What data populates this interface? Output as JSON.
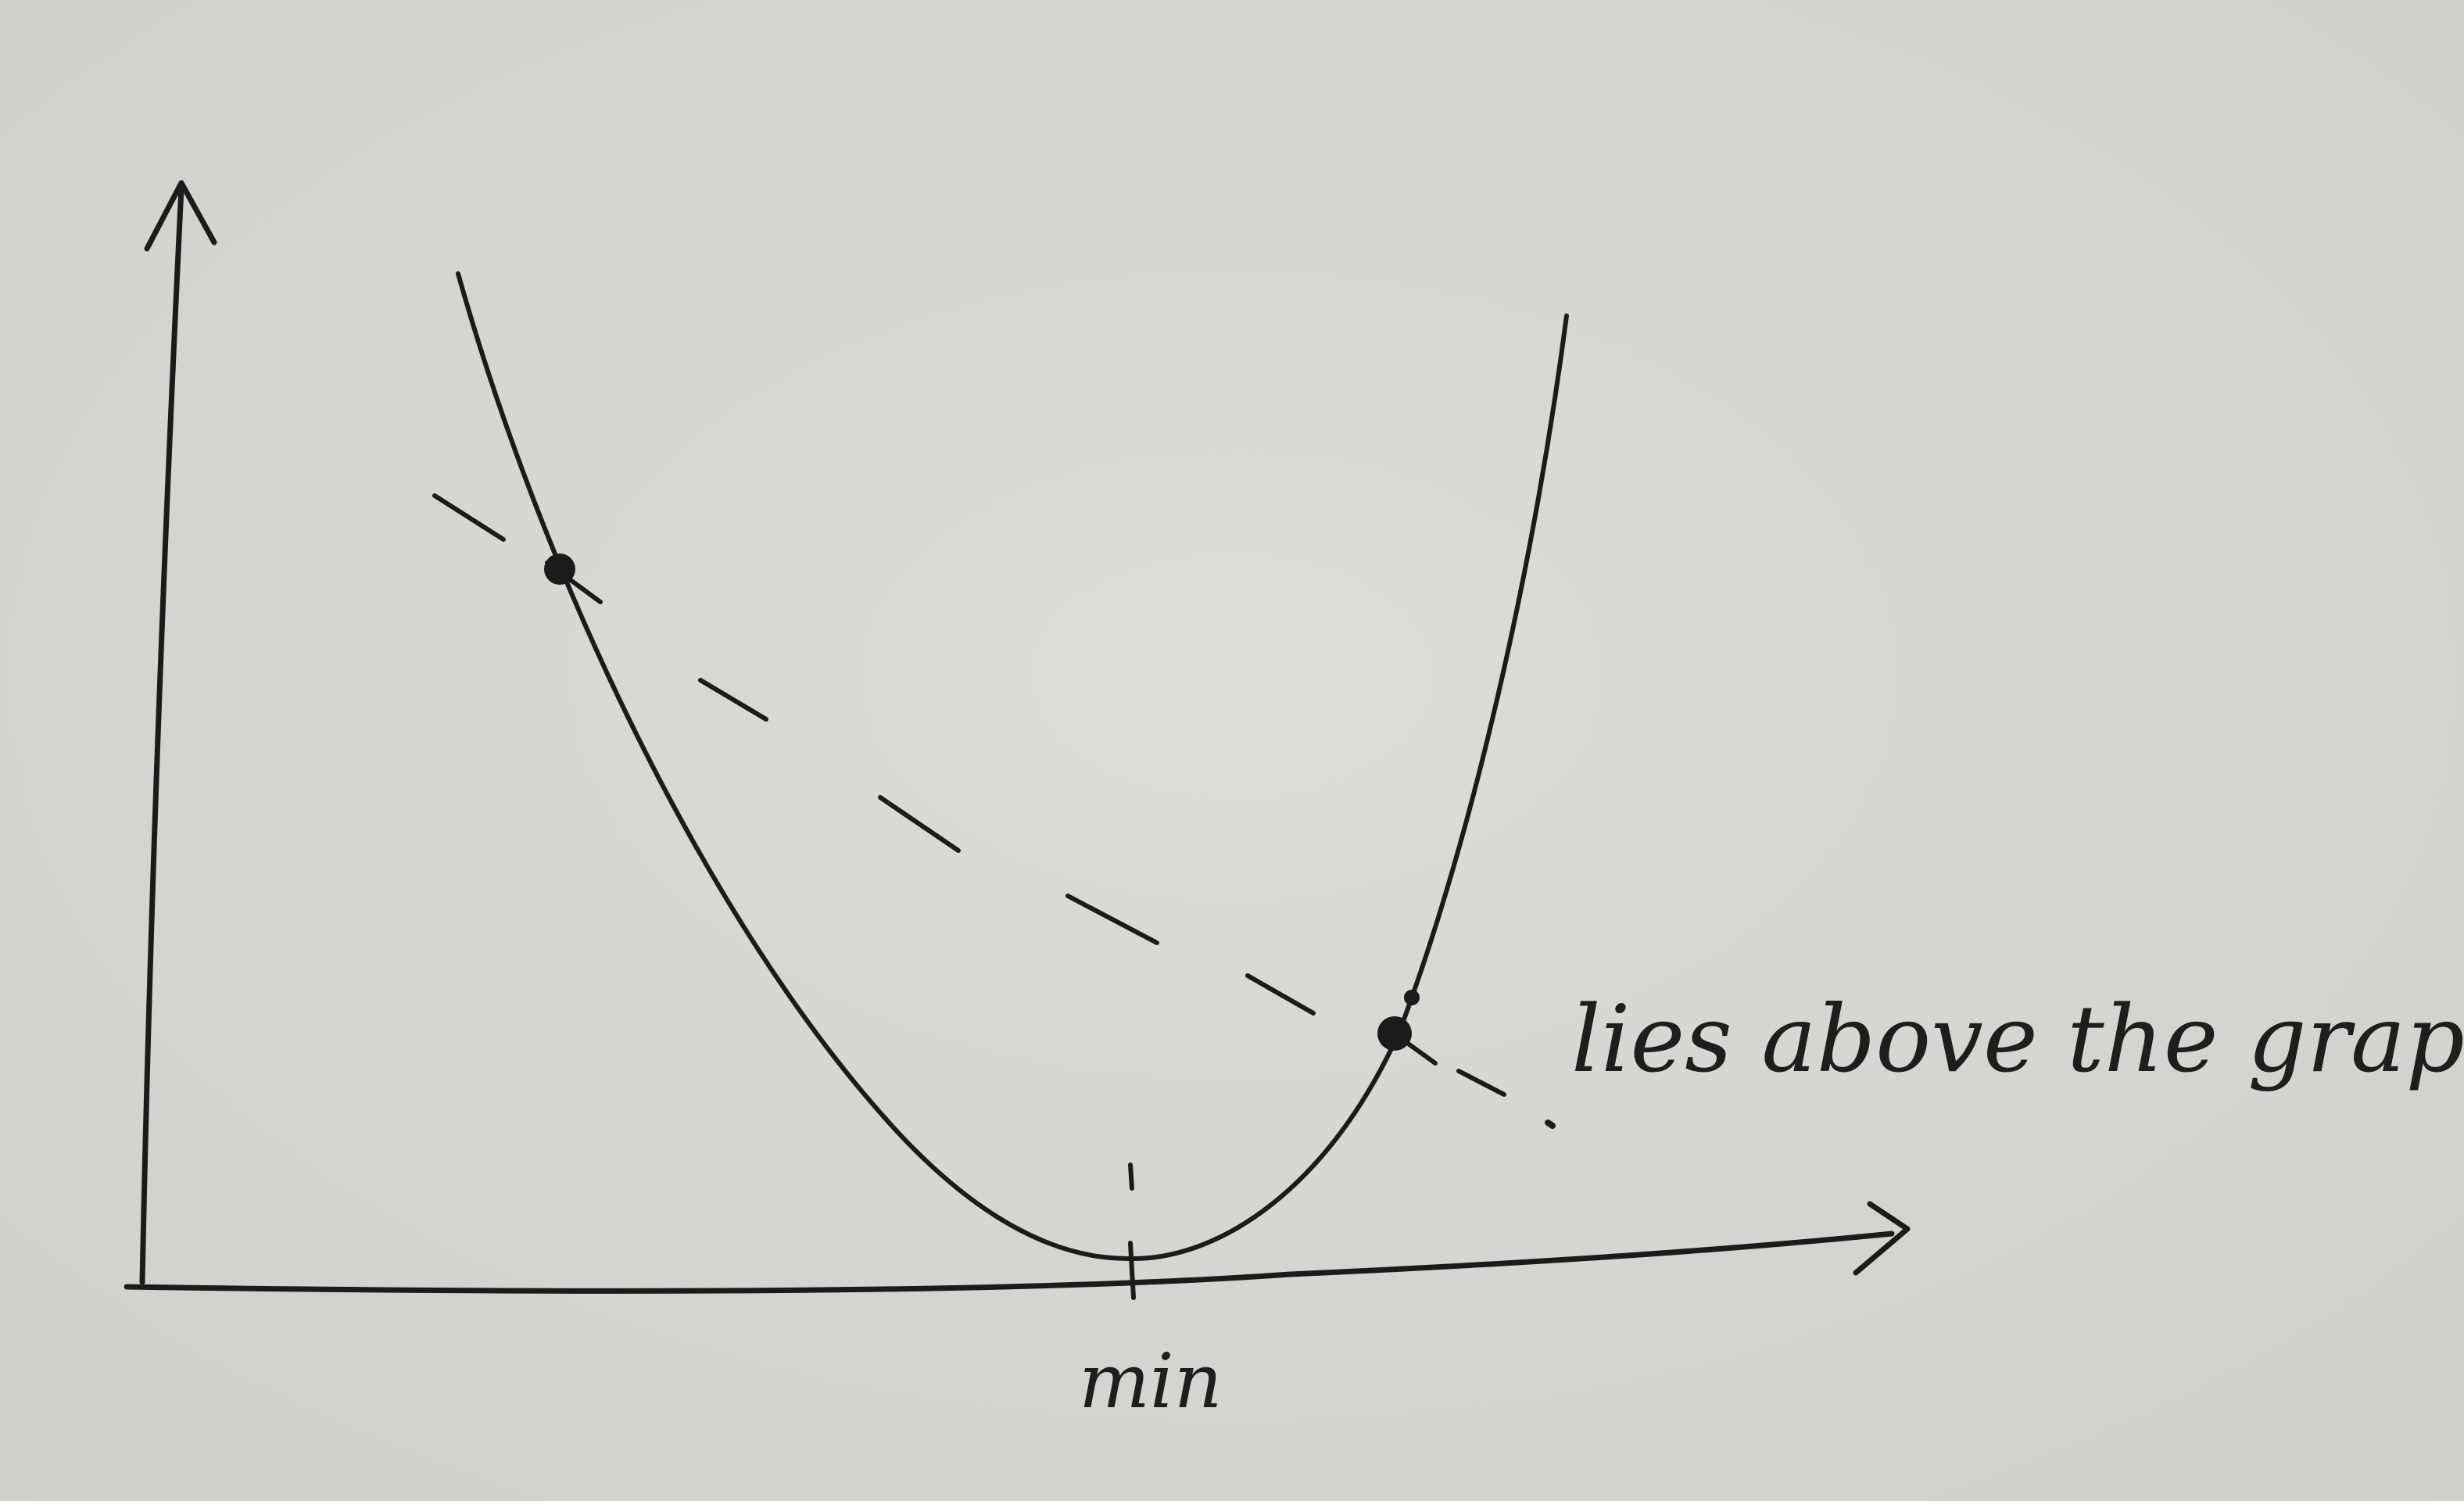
{
  "diagram": {
    "annotation": "lies above the graph.",
    "axis_label": "min",
    "ink_color": "#1b1b1b",
    "paper_color": "#d9d9d7"
  }
}
